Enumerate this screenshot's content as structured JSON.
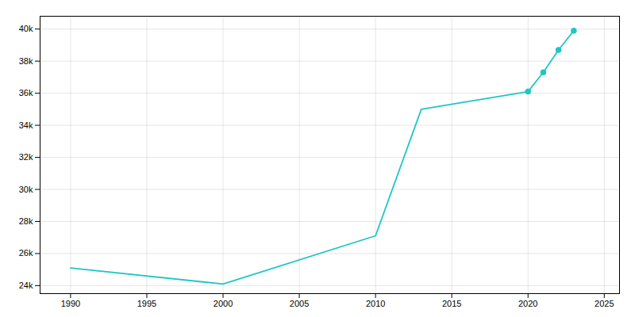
{
  "chart_data": {
    "type": "line",
    "x": [
      1990,
      2000,
      2010,
      2013,
      2020,
      2021,
      2022,
      2023
    ],
    "series": [
      {
        "type": "line",
        "color": "#20C5C5",
        "values": [
          25100,
          24100,
          27109,
          35000,
          36100,
          37300,
          38700,
          39900
        ]
      },
      {
        "type": "scatter",
        "marker": "circle",
        "color": "#20C5C5",
        "values": [
          null,
          null,
          null,
          null,
          36100,
          37300,
          38700,
          39900
        ]
      }
    ],
    "xlim": [
      1988,
      2026
    ],
    "ylim": [
      23500,
      40800
    ],
    "xticks": [
      1990,
      1995,
      2000,
      2005,
      2010,
      2015,
      2020,
      2025
    ],
    "yticks": [
      {
        "value": 24000,
        "label": "24k"
      },
      {
        "value": 26000,
        "label": "26k"
      },
      {
        "value": 28000,
        "label": "28k"
      },
      {
        "value": 30000,
        "label": "30k"
      },
      {
        "value": 32000,
        "label": "32k"
      },
      {
        "value": 34000,
        "label": "34k"
      },
      {
        "value": 36000,
        "label": "36k"
      },
      {
        "value": 38000,
        "label": "38k"
      },
      {
        "value": 40000,
        "label": "40k"
      }
    ],
    "grid": true
  }
}
